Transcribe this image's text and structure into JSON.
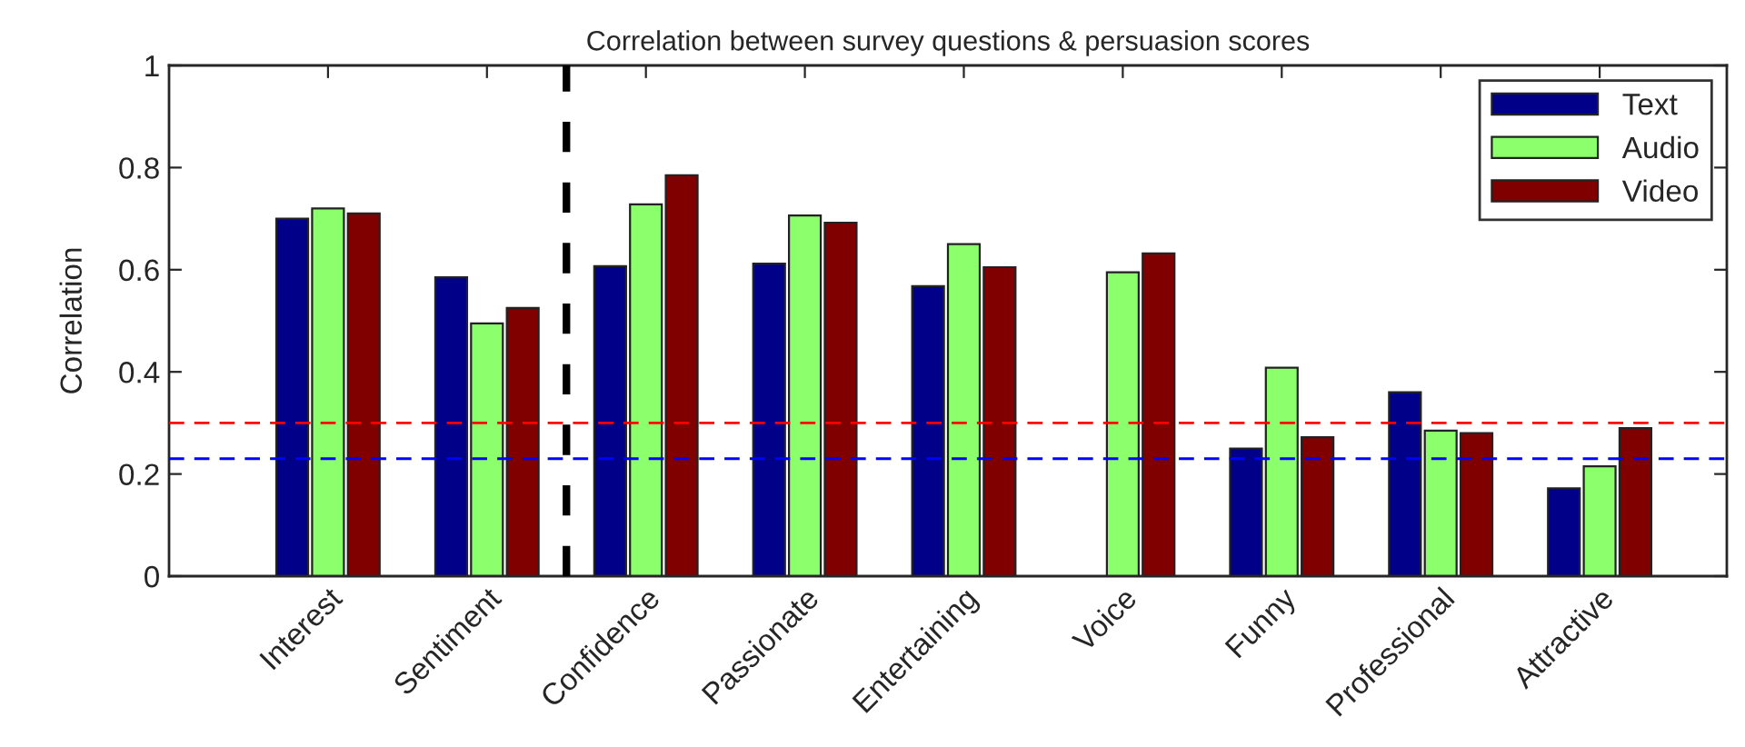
{
  "chart_data": {
    "type": "bar",
    "title": "Correlation between survey questions & persuasion scores",
    "ylabel": "Correlation",
    "categories": [
      "Interest",
      "Sentiment",
      "Confidence",
      "Passionate",
      "Entertaining",
      "Voice",
      "Funny",
      "Professional",
      "Attractive"
    ],
    "series": [
      {
        "name": "Text",
        "color": "#000088",
        "values": [
          0.7,
          0.585,
          0.607,
          0.612,
          0.568,
          null,
          0.25,
          0.36,
          0.172
        ]
      },
      {
        "name": "Audio",
        "color": "#8cff6c",
        "values": [
          0.72,
          0.495,
          0.728,
          0.706,
          0.65,
          0.595,
          0.408,
          0.285,
          0.215
        ]
      },
      {
        "name": "Video",
        "color": "#800000",
        "values": [
          0.71,
          0.525,
          0.785,
          0.692,
          0.605,
          0.632,
          0.272,
          0.28,
          0.29
        ]
      }
    ],
    "ylim": [
      0,
      1
    ],
    "yticks": [
      0,
      0.2,
      0.4,
      0.6,
      0.8,
      1
    ],
    "ref_lines": [
      {
        "axis": "y",
        "value": 0.3,
        "color": "#ff0000",
        "line_style": "dashed"
      },
      {
        "axis": "y",
        "value": 0.23,
        "color": "#0000ff",
        "line_style": "dashed"
      }
    ],
    "legend": "top right",
    "grid": false
  }
}
